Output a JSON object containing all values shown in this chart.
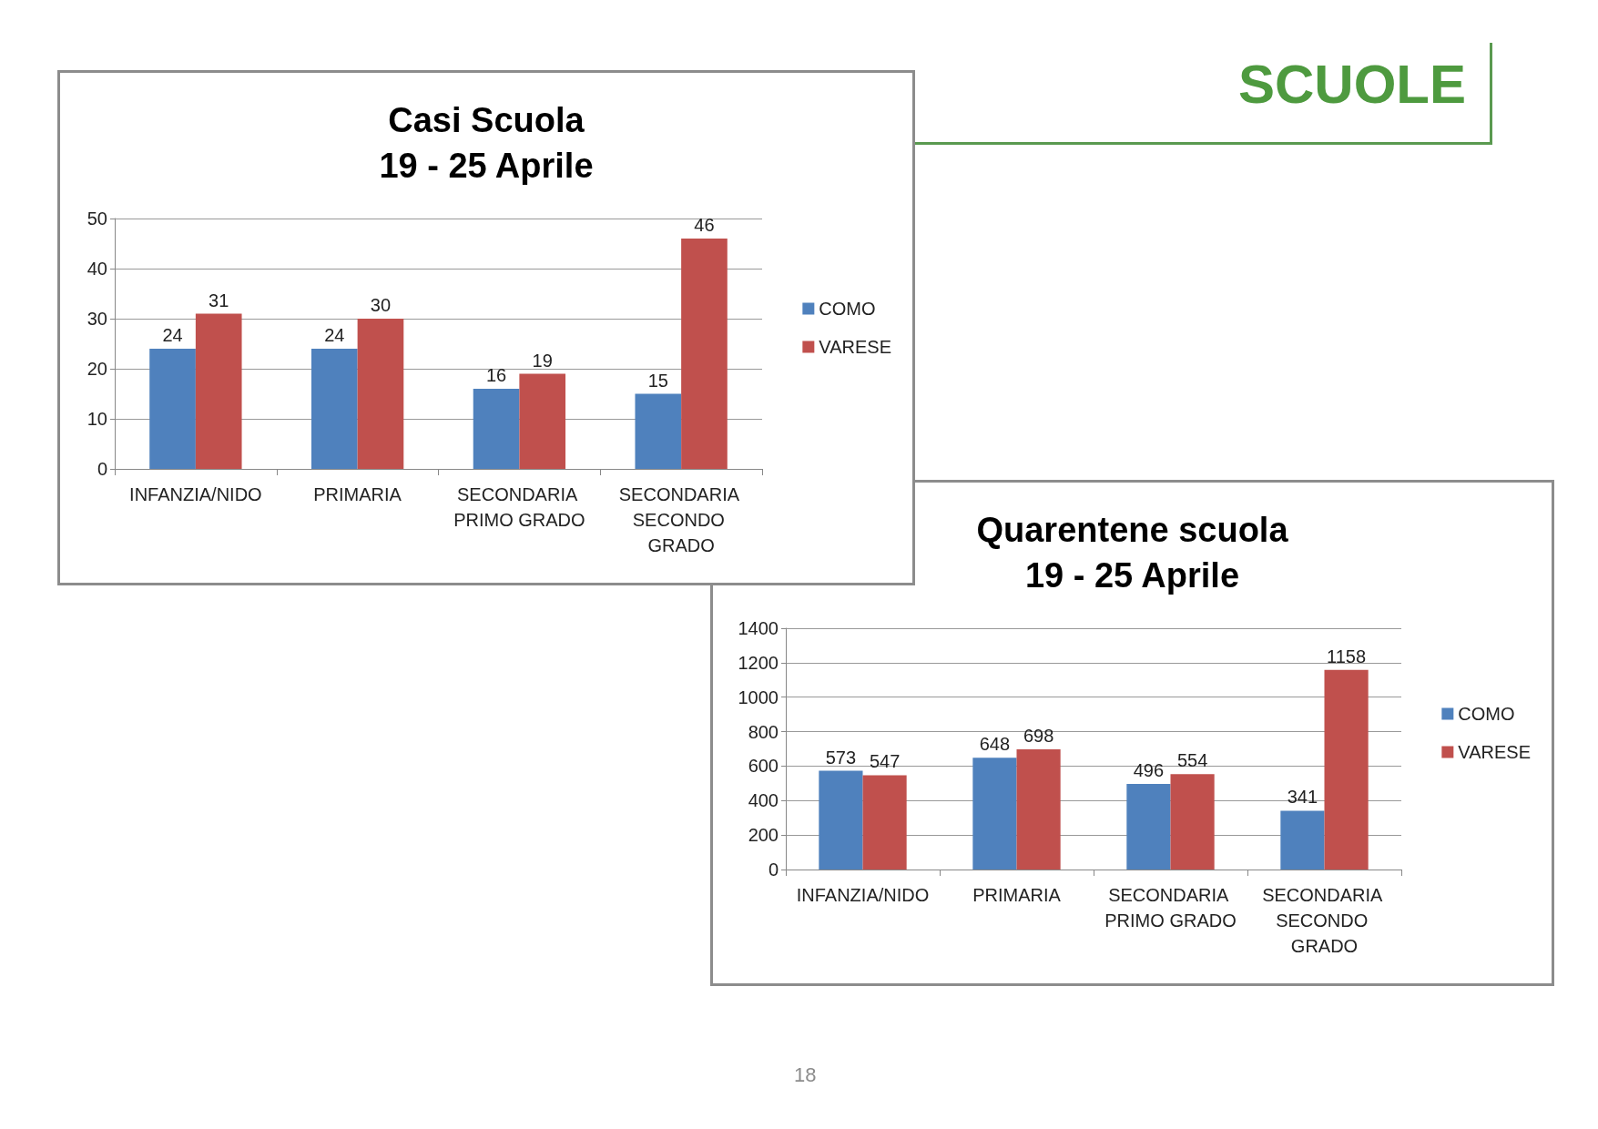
{
  "chart_data": [
    {
      "type": "bar",
      "title": "Casi Scuola\n19 - 25 Aprile",
      "categories": [
        "INFANZIA/NIDO",
        "PRIMARIA",
        "SECONDARIA PRIMO GRADO",
        "SECONDARIA SECONDO GRADO"
      ],
      "series": [
        {
          "name": "COMO",
          "color": "#4f81bd",
          "values": [
            24,
            24,
            16,
            15
          ]
        },
        {
          "name": "VARESE",
          "color": "#c0504d",
          "values": [
            31,
            30,
            19,
            46
          ]
        }
      ],
      "ylim": [
        0,
        50
      ],
      "yticks": [
        0,
        10,
        20,
        30,
        40,
        50
      ],
      "grid": "y",
      "legend": "right",
      "data_labels": true,
      "annotations": [
        "SCUOLE"
      ]
    },
    {
      "type": "bar",
      "title": "Quarentene scuola\n19 - 25 Aprile",
      "categories": [
        "INFANZIA/NIDO",
        "PRIMARIA",
        "SECONDARIA PRIMO GRADO",
        "SECONDARIA SECONDO GRADO"
      ],
      "series": [
        {
          "name": "COMO",
          "color": "#4f81bd",
          "values": [
            573,
            648,
            496,
            341
          ]
        },
        {
          "name": "VARESE",
          "color": "#c0504d",
          "values": [
            547,
            698,
            554,
            1158
          ]
        }
      ],
      "ylim": [
        0,
        1400
      ],
      "yticks": [
        0,
        200,
        400,
        600,
        800,
        1000,
        1200,
        1400
      ],
      "grid": "y",
      "legend": "right",
      "data_labels": true,
      "annotations": [
        "18"
      ]
    }
  ]
}
